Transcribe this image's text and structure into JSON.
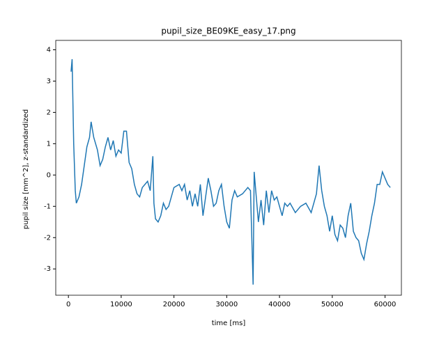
{
  "chart_data": {
    "type": "line",
    "title": "pupil_size_BE09KE_easy_17.png",
    "xlabel": "time [ms]",
    "ylabel": "pupil size [mm^2], z-standardized",
    "x": [
      500,
      700,
      1000,
      1300,
      1500,
      2000,
      2500,
      3000,
      3500,
      4000,
      4300,
      4800,
      5500,
      6000,
      6500,
      7000,
      7500,
      8000,
      8500,
      9000,
      9500,
      10000,
      10500,
      11000,
      11500,
      12000,
      12500,
      13000,
      13500,
      14000,
      14500,
      15000,
      15500,
      16000,
      16200,
      16500,
      17000,
      17500,
      18000,
      18500,
      19000,
      19500,
      20000,
      21000,
      21500,
      22000,
      22500,
      23000,
      23500,
      24000,
      24500,
      25000,
      25500,
      26000,
      26500,
      27000,
      27500,
      28000,
      28500,
      29000,
      29500,
      30000,
      30500,
      31000,
      31500,
      32000,
      33000,
      34000,
      34500,
      35000,
      35200,
      35500,
      36000,
      36500,
      37000,
      37500,
      38000,
      38500,
      39000,
      39500,
      40000,
      40500,
      41000,
      41500,
      42000,
      43000,
      44000,
      45000,
      46000,
      47000,
      47500,
      48000,
      48500,
      49000,
      49500,
      50000,
      50500,
      51000,
      51500,
      52000,
      52500,
      53000,
      53500,
      54000,
      54500,
      55000,
      55500,
      56000,
      56500,
      57000,
      57500,
      58000,
      58500,
      59000,
      59500,
      60000,
      60500,
      61000
    ],
    "series": [
      {
        "name": "pupil size",
        "color": "#1f77b4",
        "values": [
          3.3,
          3.7,
          1.0,
          -0.5,
          -0.9,
          -0.7,
          -0.3,
          0.3,
          0.9,
          1.2,
          1.7,
          1.2,
          0.8,
          0.3,
          0.5,
          0.9,
          1.2,
          0.8,
          1.1,
          0.6,
          0.8,
          0.7,
          1.4,
          1.4,
          0.4,
          0.2,
          -0.3,
          -0.6,
          -0.7,
          -0.4,
          -0.3,
          -0.2,
          -0.5,
          0.6,
          -0.9,
          -1.4,
          -1.5,
          -1.3,
          -0.9,
          -1.1,
          -1.0,
          -0.7,
          -0.4,
          -0.3,
          -0.5,
          -0.3,
          -0.8,
          -0.5,
          -1.0,
          -0.6,
          -1.0,
          -0.3,
          -1.3,
          -0.7,
          -0.1,
          -0.5,
          -1.0,
          -0.9,
          -0.5,
          -0.3,
          -1.0,
          -1.5,
          -1.7,
          -0.8,
          -0.5,
          -0.7,
          -0.6,
          -0.4,
          -0.5,
          -3.5,
          0.1,
          -0.5,
          -1.5,
          -0.8,
          -1.6,
          -0.5,
          -1.2,
          -0.5,
          -0.8,
          -0.7,
          -1.0,
          -1.3,
          -0.9,
          -1.0,
          -0.9,
          -1.2,
          -1.0,
          -0.9,
          -1.2,
          -0.6,
          0.3,
          -0.5,
          -1.0,
          -1.3,
          -1.8,
          -1.3,
          -1.9,
          -2.1,
          -1.6,
          -1.7,
          -2.0,
          -1.3,
          -0.9,
          -1.8,
          -2.0,
          -2.1,
          -2.5,
          -2.7,
          -2.2,
          -1.8,
          -1.3,
          -0.9,
          -0.3,
          -0.3,
          0.1,
          -0.1,
          -0.3,
          -0.4
        ]
      }
    ],
    "xlim": [
      -2400,
      63100
    ],
    "ylim": [
      -3.84,
      4.3
    ],
    "xticks": [
      0,
      10000,
      20000,
      30000,
      40000,
      50000,
      60000
    ],
    "yticks": [
      -3,
      -2,
      -1,
      0,
      1,
      2,
      3,
      4
    ]
  }
}
